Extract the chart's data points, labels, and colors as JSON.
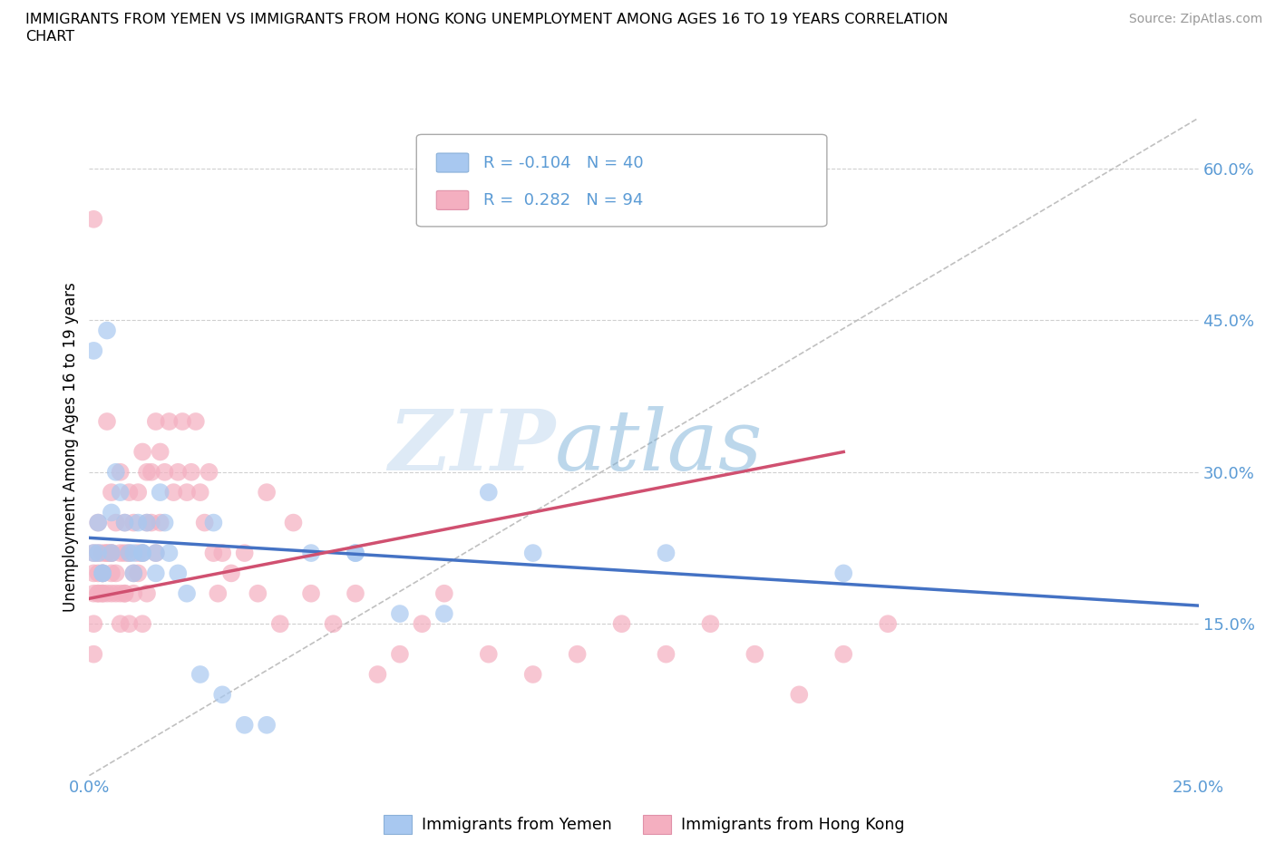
{
  "title_line1": "IMMIGRANTS FROM YEMEN VS IMMIGRANTS FROM HONG KONG UNEMPLOYMENT AMONG AGES 16 TO 19 YEARS CORRELATION",
  "title_line2": "CHART",
  "source_text": "Source: ZipAtlas.com",
  "ylabel": "Unemployment Among Ages 16 to 19 years",
  "xlim": [
    0.0,
    0.25
  ],
  "ylim": [
    0.0,
    0.65
  ],
  "yticks": [
    0.15,
    0.3,
    0.45,
    0.6
  ],
  "ytick_labels": [
    "15.0%",
    "30.0%",
    "45.0%",
    "60.0%"
  ],
  "xticks": [
    0.0,
    0.05,
    0.1,
    0.15,
    0.2,
    0.25
  ],
  "xtick_labels": [
    "0.0%",
    "",
    "",
    "",
    "",
    "25.0%"
  ],
  "yemen_color": "#a8c8f0",
  "hk_color": "#f4afc0",
  "yemen_R": -0.104,
  "yemen_N": 40,
  "hk_R": 0.282,
  "hk_N": 94,
  "yemen_line_color": "#4472c4",
  "hk_line_color": "#d05070",
  "diagonal_color": "#c0c0c0",
  "watermark_zip": "ZIP",
  "watermark_atlas": "atlas",
  "yemen_scatter_x": [
    0.001,
    0.002,
    0.003,
    0.004,
    0.005,
    0.005,
    0.006,
    0.007,
    0.008,
    0.009,
    0.01,
    0.011,
    0.012,
    0.013,
    0.015,
    0.016,
    0.017,
    0.018,
    0.02,
    0.022,
    0.025,
    0.03,
    0.035,
    0.04,
    0.05,
    0.06,
    0.07,
    0.08,
    0.1,
    0.13,
    0.001,
    0.002,
    0.003,
    0.01,
    0.012,
    0.015,
    0.028,
    0.06,
    0.09,
    0.17
  ],
  "yemen_scatter_y": [
    0.22,
    0.25,
    0.2,
    0.44,
    0.22,
    0.26,
    0.3,
    0.28,
    0.25,
    0.22,
    0.2,
    0.25,
    0.22,
    0.25,
    0.22,
    0.28,
    0.25,
    0.22,
    0.2,
    0.18,
    0.1,
    0.08,
    0.05,
    0.05,
    0.22,
    0.22,
    0.16,
    0.16,
    0.22,
    0.22,
    0.42,
    0.22,
    0.2,
    0.22,
    0.22,
    0.2,
    0.25,
    0.22,
    0.28,
    0.2
  ],
  "hk_scatter_x": [
    0.001,
    0.001,
    0.001,
    0.001,
    0.001,
    0.002,
    0.002,
    0.002,
    0.003,
    0.003,
    0.003,
    0.004,
    0.004,
    0.004,
    0.005,
    0.005,
    0.005,
    0.006,
    0.006,
    0.007,
    0.007,
    0.007,
    0.008,
    0.008,
    0.008,
    0.009,
    0.009,
    0.01,
    0.01,
    0.011,
    0.011,
    0.012,
    0.012,
    0.013,
    0.013,
    0.014,
    0.014,
    0.015,
    0.015,
    0.016,
    0.016,
    0.017,
    0.018,
    0.019,
    0.02,
    0.021,
    0.022,
    0.023,
    0.024,
    0.025,
    0.026,
    0.027,
    0.028,
    0.029,
    0.03,
    0.032,
    0.035,
    0.038,
    0.04,
    0.043,
    0.046,
    0.05,
    0.055,
    0.06,
    0.065,
    0.07,
    0.075,
    0.08,
    0.09,
    0.1,
    0.11,
    0.12,
    0.13,
    0.14,
    0.15,
    0.16,
    0.17,
    0.18,
    0.001,
    0.002,
    0.002,
    0.003,
    0.003,
    0.004,
    0.005,
    0.005,
    0.006,
    0.007,
    0.008,
    0.009,
    0.01,
    0.011,
    0.012,
    0.013
  ],
  "hk_scatter_y": [
    0.55,
    0.22,
    0.18,
    0.15,
    0.12,
    0.25,
    0.2,
    0.18,
    0.22,
    0.2,
    0.18,
    0.35,
    0.22,
    0.18,
    0.28,
    0.22,
    0.18,
    0.25,
    0.2,
    0.3,
    0.22,
    0.18,
    0.25,
    0.22,
    0.18,
    0.28,
    0.22,
    0.25,
    0.2,
    0.28,
    0.22,
    0.32,
    0.22,
    0.3,
    0.25,
    0.3,
    0.25,
    0.35,
    0.22,
    0.32,
    0.25,
    0.3,
    0.35,
    0.28,
    0.3,
    0.35,
    0.28,
    0.3,
    0.35,
    0.28,
    0.25,
    0.3,
    0.22,
    0.18,
    0.22,
    0.2,
    0.22,
    0.18,
    0.28,
    0.15,
    0.25,
    0.18,
    0.15,
    0.18,
    0.1,
    0.12,
    0.15,
    0.18,
    0.12,
    0.1,
    0.12,
    0.15,
    0.12,
    0.15,
    0.12,
    0.08,
    0.12,
    0.15,
    0.2,
    0.22,
    0.18,
    0.2,
    0.18,
    0.22,
    0.2,
    0.22,
    0.18,
    0.15,
    0.18,
    0.15,
    0.18,
    0.2,
    0.15,
    0.18
  ],
  "yemen_trendline_x": [
    0.0,
    0.25
  ],
  "yemen_trendline_y": [
    0.235,
    0.168
  ],
  "hk_trendline_x": [
    0.0,
    0.17
  ],
  "hk_trendline_y": [
    0.175,
    0.32
  ]
}
